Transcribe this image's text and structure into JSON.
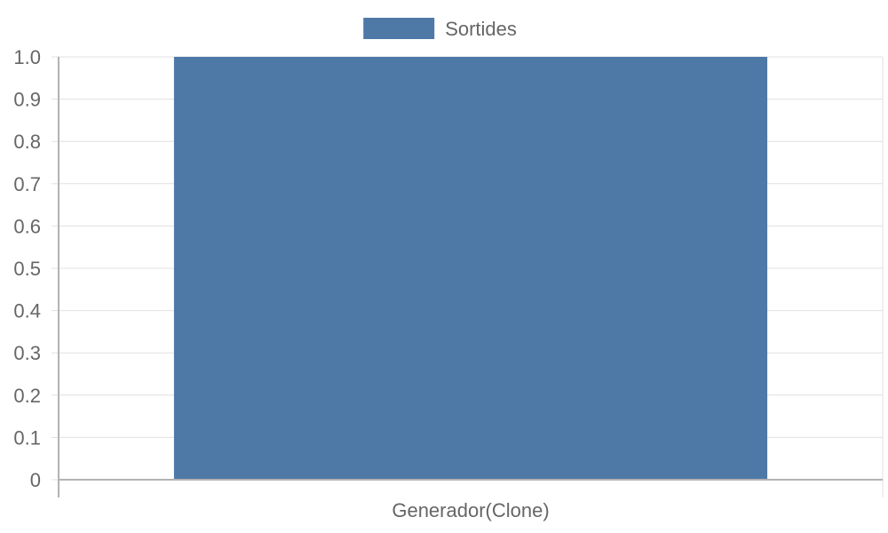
{
  "chart_data": {
    "type": "bar",
    "categories": [
      "Generador(Clone)"
    ],
    "series": [
      {
        "name": "Sortides",
        "values": [
          1.0
        ]
      }
    ],
    "ylim": [
      0,
      1.0
    ],
    "y_ticks": [
      0,
      0.1,
      0.2,
      0.3,
      0.4,
      0.5,
      0.6,
      0.7,
      0.8,
      0.9,
      1.0
    ],
    "y_tick_labels": [
      "0",
      "0.1",
      "0.2",
      "0.3",
      "0.4",
      "0.5",
      "0.6",
      "0.7",
      "0.8",
      "0.9",
      "1.0"
    ],
    "title": "",
    "xlabel": "",
    "ylabel": "",
    "grid": true,
    "legend_position": "top-center"
  },
  "colors": {
    "series": [
      "#4e79a7"
    ],
    "grid": "#e0e0e0",
    "axis": "#b3b3b3",
    "text": "#666666"
  }
}
